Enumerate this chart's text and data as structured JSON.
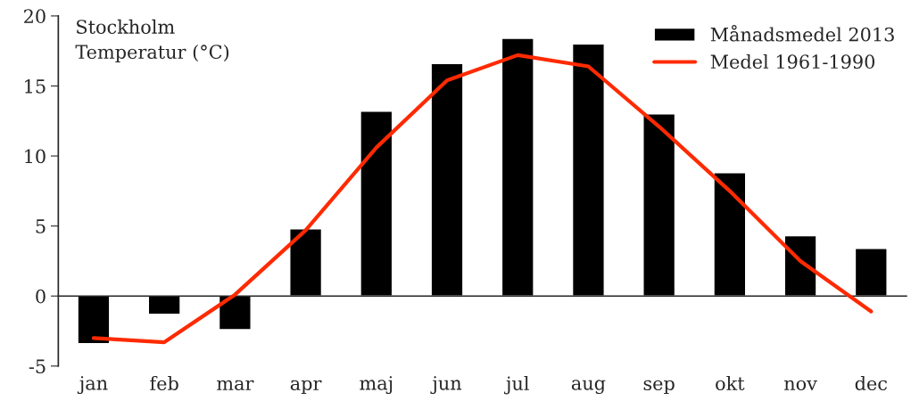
{
  "chart_data": {
    "type": "bar",
    "title": "Stockholm\nTemperatur (°C)",
    "categories": [
      "jan",
      "feb",
      "mar",
      "apr",
      "maj",
      "jun",
      "jul",
      "aug",
      "sep",
      "okt",
      "nov",
      "dec"
    ],
    "series": [
      {
        "name": "Månadsmedel 2013",
        "color": "#000000",
        "values": [
          -3.4,
          -1.3,
          -2.4,
          4.8,
          13.2,
          16.6,
          18.4,
          18.0,
          13.0,
          8.8,
          4.3,
          3.4
        ]
      },
      {
        "name": "Medel 1961-1990",
        "type": "line",
        "color": "#ff2a00",
        "values": [
          -3.0,
          -3.3,
          0.1,
          4.7,
          10.6,
          15.4,
          17.2,
          16.4,
          12.1,
          7.5,
          2.5,
          -1.1
        ]
      }
    ],
    "ylim": [
      -5,
      20
    ],
    "yticks": [
      -5,
      0,
      5,
      10,
      15,
      20
    ],
    "legend": "top right",
    "marker": "none",
    "line_style": "solid"
  }
}
